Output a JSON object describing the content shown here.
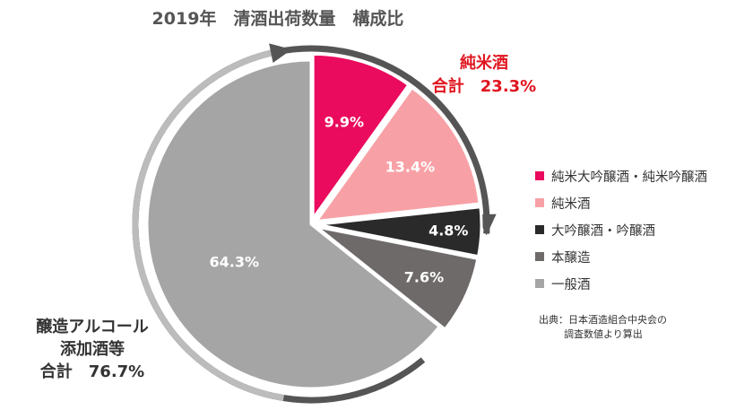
{
  "title": "2019年　清酒出荷数量　構成比",
  "colors": {
    "pink_deep": "#ea0a5e",
    "pink_light": "#f7a1a6",
    "black": "#2a2a2a",
    "dark_gray": "#6f6a6a",
    "light_gray": "#a5a5a5",
    "arrow_dark": "#555555",
    "arrow_light": "#bcbcbc",
    "red_text": "#e0141e"
  },
  "annotations": {
    "junmai_total": {
      "line1": "純米酒",
      "line2": "合計　23.3%"
    },
    "jozo_total": {
      "line1": "醸造アルコール",
      "line2": "添加酒等",
      "line3": "合計　76.7%"
    }
  },
  "source": {
    "line1": "出典：日本酒造組合中央会の",
    "line2": "調査数値より算出"
  },
  "chart_data": {
    "type": "pie",
    "title": "2019年　清酒出荷数量　構成比",
    "start_angle": "12 o'clock",
    "direction": "clockwise",
    "legend_position": "right",
    "slices": [
      {
        "name": "純米大吟醸酒・純米吟醸酒",
        "value": 9.9,
        "label": "9.9%",
        "color": "#ea0a5e",
        "label_color": "#ffffff"
      },
      {
        "name": "純米酒",
        "value": 13.4,
        "label": "13.4%",
        "color": "#f7a1a6",
        "label_color": "#ffffff"
      },
      {
        "name": "大吟醸酒・吟醸酒",
        "value": 4.8,
        "label": "4.8%",
        "color": "#2a2a2a",
        "label_color": "#ffffff"
      },
      {
        "name": "本醸造",
        "value": 7.6,
        "label": "7.6%",
        "color": "#6f6a6a",
        "label_color": "#ffffff"
      },
      {
        "name": "一般酒",
        "value": 64.3,
        "label": "64.3%",
        "color": "#a5a5a5",
        "label_color": "#ffffff"
      }
    ],
    "groups": [
      {
        "label": "純米酒 合計",
        "value": 23.3,
        "slices": [
          "純米大吟醸酒・純米吟醸酒",
          "純米酒"
        ]
      },
      {
        "label": "醸造アルコール添加酒等 合計",
        "value": 76.7,
        "slices": [
          "大吟醸酒・吟醸酒",
          "本醸造",
          "一般酒"
        ]
      }
    ]
  }
}
